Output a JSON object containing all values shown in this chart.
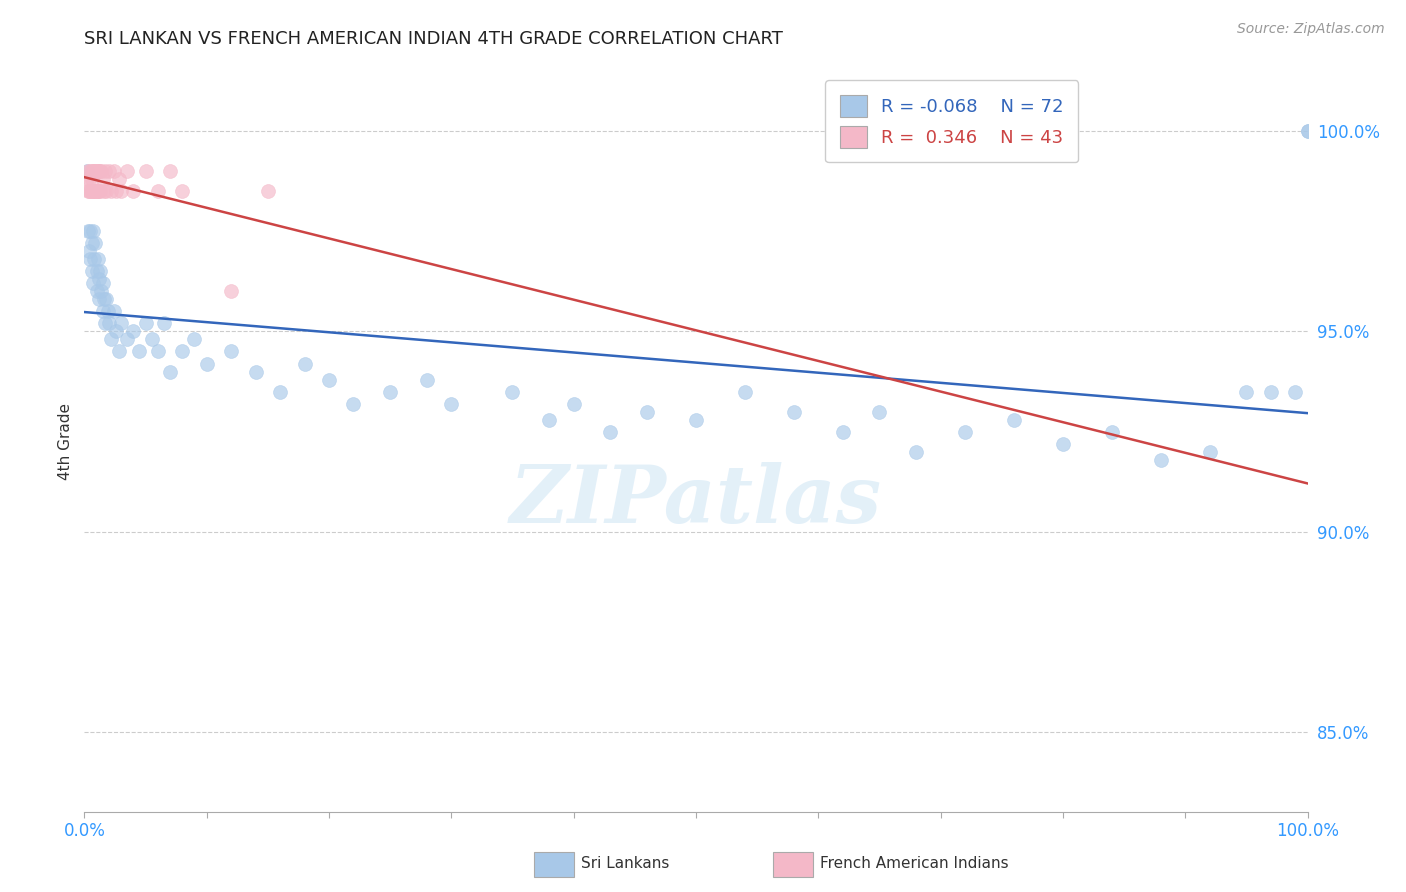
{
  "title": "SRI LANKAN VS FRENCH AMERICAN INDIAN 4TH GRADE CORRELATION CHART",
  "source": "Source: ZipAtlas.com",
  "ylabel": "4th Grade",
  "yaxis_labels": [
    "85.0%",
    "90.0%",
    "95.0%",
    "100.0%"
  ],
  "yaxis_values": [
    0.85,
    0.9,
    0.95,
    1.0
  ],
  "blue_R": -0.068,
  "blue_N": 72,
  "pink_R": 0.346,
  "pink_N": 43,
  "blue_color": "#a8c8e8",
  "pink_color": "#f4b8c8",
  "blue_line_color": "#3366bb",
  "pink_line_color": "#cc4444",
  "legend_blue_label": "Sri Lankans",
  "legend_pink_label": "French American Indians",
  "blue_x": [
    0.002,
    0.003,
    0.004,
    0.005,
    0.005,
    0.006,
    0.006,
    0.007,
    0.007,
    0.008,
    0.009,
    0.01,
    0.01,
    0.011,
    0.012,
    0.012,
    0.013,
    0.014,
    0.015,
    0.015,
    0.016,
    0.017,
    0.018,
    0.019,
    0.02,
    0.022,
    0.024,
    0.026,
    0.028,
    0.03,
    0.035,
    0.04,
    0.045,
    0.05,
    0.055,
    0.06,
    0.065,
    0.07,
    0.08,
    0.09,
    0.1,
    0.12,
    0.14,
    0.16,
    0.18,
    0.2,
    0.22,
    0.25,
    0.28,
    0.3,
    0.35,
    0.38,
    0.4,
    0.43,
    0.46,
    0.5,
    0.54,
    0.58,
    0.62,
    0.65,
    0.68,
    0.72,
    0.76,
    0.8,
    0.84,
    0.88,
    0.92,
    0.95,
    0.97,
    0.99,
    1.0,
    1.0
  ],
  "blue_y": [
    0.99,
    0.975,
    0.97,
    0.975,
    0.968,
    0.972,
    0.965,
    0.975,
    0.962,
    0.968,
    0.972,
    0.965,
    0.96,
    0.968,
    0.963,
    0.958,
    0.965,
    0.96,
    0.955,
    0.962,
    0.958,
    0.952,
    0.958,
    0.955,
    0.952,
    0.948,
    0.955,
    0.95,
    0.945,
    0.952,
    0.948,
    0.95,
    0.945,
    0.952,
    0.948,
    0.945,
    0.952,
    0.94,
    0.945,
    0.948,
    0.942,
    0.945,
    0.94,
    0.935,
    0.942,
    0.938,
    0.932,
    0.935,
    0.938,
    0.932,
    0.935,
    0.928,
    0.932,
    0.925,
    0.93,
    0.928,
    0.935,
    0.93,
    0.925,
    0.93,
    0.92,
    0.925,
    0.928,
    0.922,
    0.925,
    0.918,
    0.92,
    0.935,
    0.935,
    0.935,
    1.0,
    1.0
  ],
  "pink_x": [
    0.002,
    0.003,
    0.003,
    0.004,
    0.004,
    0.005,
    0.005,
    0.006,
    0.006,
    0.006,
    0.007,
    0.007,
    0.008,
    0.008,
    0.009,
    0.009,
    0.01,
    0.01,
    0.011,
    0.011,
    0.012,
    0.012,
    0.013,
    0.013,
    0.014,
    0.015,
    0.016,
    0.017,
    0.018,
    0.02,
    0.022,
    0.024,
    0.026,
    0.028,
    0.03,
    0.035,
    0.04,
    0.05,
    0.06,
    0.07,
    0.08,
    0.12,
    0.15
  ],
  "pink_y": [
    0.988,
    0.99,
    0.985,
    0.988,
    0.985,
    0.99,
    0.985,
    0.99,
    0.985,
    0.988,
    0.99,
    0.985,
    0.99,
    0.985,
    0.99,
    0.985,
    0.99,
    0.985,
    0.99,
    0.985,
    0.99,
    0.985,
    0.99,
    0.985,
    0.99,
    0.988,
    0.985,
    0.99,
    0.985,
    0.99,
    0.985,
    0.99,
    0.985,
    0.988,
    0.985,
    0.99,
    0.985,
    0.99,
    0.985,
    0.99,
    0.985,
    0.96,
    0.985
  ],
  "xlim": [
    0.0,
    1.0
  ],
  "ylim": [
    0.83,
    1.015
  ]
}
